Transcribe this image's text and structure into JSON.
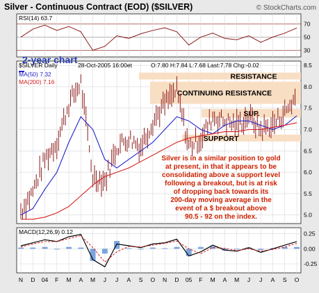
{
  "title": "Silver - Continuous Contract (EOD) ($SILVER)",
  "watermark": "© StockCharts.com",
  "colors": {
    "background": "#e9e9e9",
    "panel": "#ffffff",
    "band": "#f8dcc0",
    "price_bar": "#8b1a1a",
    "ma50": "#2323c8",
    "ma200": "#d42020",
    "annotation": "#cc2200",
    "macd": "#000000",
    "signal": "#d42020",
    "histogram": "#5b8fd6"
  },
  "rsi": {
    "label": "RSI(14) 63.7",
    "ticks": [
      {
        "v": 70,
        "label": "70"
      },
      {
        "v": 50,
        "label": "50"
      },
      {
        "v": 30,
        "label": "30"
      }
    ],
    "overlay_label": "2-year chart"
  },
  "price": {
    "label": "$SILVER Daily",
    "date": "28-Oct-2005 16:00et",
    "ohlc": "O:7.80 H:7.84 L:7.68 Last:7.78 Chg:-0.02",
    "ma50_label": "MA(50) 7.32",
    "ma200_label": "MA(200) 7.16",
    "ticks": [
      {
        "v": 8.5,
        "label": "8.5"
      },
      {
        "v": 8.0,
        "label": "8.0"
      },
      {
        "v": 7.5,
        "label": "7.5"
      },
      {
        "v": 7.0,
        "label": "7.0"
      },
      {
        "v": 6.5,
        "label": "6.5"
      },
      {
        "v": 6.0,
        "label": "6.0"
      },
      {
        "v": 5.5,
        "label": "5.5"
      },
      {
        "v": 5.0,
        "label": "5.0"
      }
    ],
    "bands": [
      {
        "label": "RESISTANCE",
        "low": 8.17,
        "high": 8.33
      },
      {
        "label": "CONTINUING RESISTANCE",
        "low": 7.6,
        "high": 8.12
      },
      {
        "label": "SUP.",
        "low": 7.28,
        "high": 7.48
      },
      {
        "label": "SUPPORT",
        "low": 6.72,
        "high": 6.88
      }
    ],
    "annotation": [
      "Silver is in a similar position to gold",
      "at present, in that it appears to be",
      "consolidating above a support level",
      "following a breakout, but is at risk",
      "of dropping back towards its",
      "200-day moving average in the",
      "event of a $ breakout above",
      "90.5 - 92 on the index."
    ]
  },
  "macd": {
    "label": "MACD(12,26,9) 0.12",
    "ticks": [
      {
        "v": 0.25,
        "label": "0.25"
      },
      {
        "v": 0.0,
        "label": "0.00"
      },
      {
        "v": -0.25,
        "label": "-0.25"
      }
    ]
  },
  "x_axis": [
    "N",
    "D",
    "04",
    "F",
    "M",
    "A",
    "M",
    "J",
    "J",
    "A",
    "S",
    "O",
    "N",
    "D",
    "05",
    "F",
    "M",
    "A",
    "M",
    "J",
    "J",
    "A",
    "S",
    "O"
  ],
  "chart_data": {
    "type": "line",
    "title": "Silver - Continuous Contract (EOD) ($SILVER)",
    "x": [
      "Nov 03",
      "Dec 03",
      "Jan 04",
      "Feb 04",
      "Mar 04",
      "Apr 04",
      "May 04",
      "Jun 04",
      "Jul 04",
      "Aug 04",
      "Sep 04",
      "Oct 04",
      "Nov 04",
      "Dec 04",
      "Jan 05",
      "Feb 05",
      "Mar 05",
      "Apr 05",
      "May 05",
      "Jun 05",
      "Jul 05",
      "Aug 05",
      "Sep 05",
      "Oct 05"
    ],
    "series": [
      {
        "name": "$SILVER Daily",
        "values": [
          5.1,
          5.55,
          6.3,
          6.7,
          7.6,
          8.1,
          5.9,
          5.8,
          6.6,
          6.8,
          6.6,
          7.2,
          7.6,
          7.9,
          6.6,
          6.8,
          7.3,
          7.2,
          7.1,
          7.3,
          7.0,
          7.1,
          7.4,
          7.78
        ]
      },
      {
        "name": "MA(50)",
        "values": [
          5.0,
          5.15,
          5.6,
          6.0,
          6.7,
          7.3,
          7.0,
          6.3,
          6.1,
          6.3,
          6.5,
          6.7,
          7.0,
          7.3,
          7.2,
          7.0,
          6.9,
          7.1,
          7.2,
          7.2,
          7.1,
          7.0,
          7.1,
          7.32
        ]
      },
      {
        "name": "MA(200)",
        "values": [
          4.9,
          4.9,
          4.95,
          5.05,
          5.2,
          5.45,
          5.7,
          5.9,
          6.0,
          6.1,
          6.25,
          6.4,
          6.55,
          6.7,
          6.8,
          6.85,
          6.9,
          6.95,
          6.95,
          7.0,
          7.0,
          7.05,
          7.1,
          7.16
        ]
      }
    ],
    "rsi": [
      50,
      62,
      68,
      60,
      66,
      58,
      30,
      36,
      52,
      48,
      55,
      60,
      64,
      58,
      38,
      50,
      56,
      48,
      46,
      52,
      42,
      50,
      56,
      63.7
    ],
    "macd": [
      0.05,
      0.1,
      0.15,
      0.12,
      0.2,
      0.24,
      -0.18,
      -0.3,
      0.08,
      0.05,
      0.02,
      0.08,
      0.1,
      0.16,
      -0.12,
      -0.05,
      0.06,
      -0.02,
      -0.04,
      0.02,
      -0.06,
      0.0,
      0.06,
      0.12
    ],
    "signal": [
      0.03,
      0.08,
      0.12,
      0.12,
      0.17,
      0.22,
      0.02,
      -0.22,
      -0.05,
      0.04,
      0.03,
      0.06,
      0.09,
      0.13,
      0.0,
      -0.08,
      0.02,
      0.01,
      -0.03,
      0.0,
      -0.04,
      -0.01,
      0.03,
      0.09
    ],
    "ylim": [
      4.8,
      8.6
    ],
    "rsi_ylim": [
      20,
      85
    ],
    "macd_ylim": [
      -0.4,
      0.35
    ],
    "legend": "top-left",
    "grid": true
  }
}
